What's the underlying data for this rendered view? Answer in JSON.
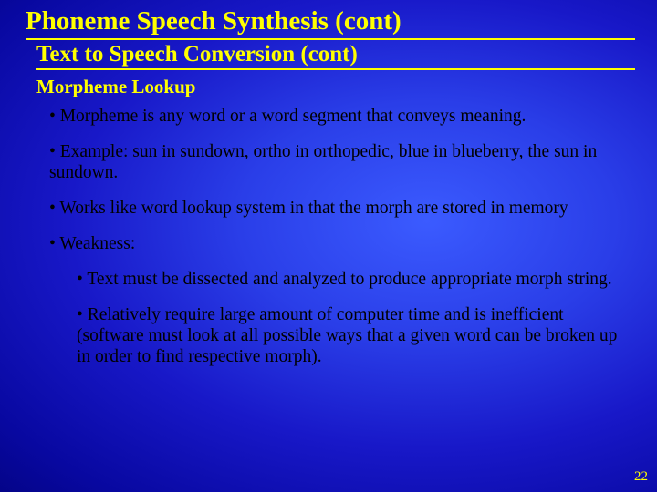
{
  "colors": {
    "accent": "#ffff00",
    "bg_center": "#3b5bff",
    "bg_edge": "#000038",
    "body_text": "#000000"
  },
  "typography": {
    "family": "Times New Roman",
    "title_size_pt": 29,
    "subtitle_size_pt": 25,
    "section_size_pt": 21,
    "body_size_pt": 19.5
  },
  "title": "Phoneme Speech Synthesis (cont)",
  "subtitle": "Text to Speech Conversion (cont)",
  "section": "Morpheme Lookup",
  "bullets": [
    "• Morpheme   is any word or a word segment that conveys meaning.",
    "• Example: sun in sundown, ortho in orthopedic, blue in blueberry, the sun in sundown.",
    "• Works like word lookup system in that the morph are stored in memory",
    "• Weakness:"
  ],
  "sub_bullets": [
    "• Text must be dissected and analyzed to produce appropriate morph string.",
    "• Relatively require large amount of computer time and is inefficient (software must look at all possible ways that a given word can be broken up in order to find respective morph)."
  ],
  "page_number": "22"
}
